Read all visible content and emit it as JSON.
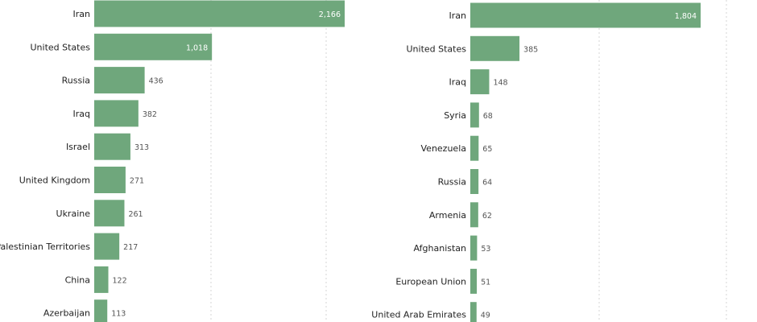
{
  "chart_data": [
    {
      "type": "bar",
      "orientation": "horizontal",
      "title": "",
      "xlabel": "",
      "ylabel": "",
      "xlim": [
        0,
        2200
      ],
      "grid": true,
      "color": "#6fa77c",
      "categories": [
        "Iran",
        "United States",
        "Russia",
        "Iraq",
        "Israel",
        "United Kingdom",
        "Ukraine",
        "Palestinian Territories",
        "China",
        "Azerbaijan"
      ],
      "values": [
        2166,
        1018,
        436,
        382,
        313,
        271,
        261,
        217,
        122,
        113
      ],
      "labels": [
        "2,166",
        "1,018",
        "436",
        "382",
        "313",
        "271",
        "261",
        "217",
        "122",
        "113"
      ]
    },
    {
      "type": "bar",
      "orientation": "horizontal",
      "title": "",
      "xlabel": "",
      "ylabel": "",
      "xlim": [
        0,
        2200
      ],
      "grid": true,
      "color": "#6fa77c",
      "categories": [
        "Iran",
        "United States",
        "Iraq",
        "Syria",
        "Venezuela",
        "Russia",
        "Armenia",
        "Afghanistan",
        "European Union",
        "United Arab Emirates"
      ],
      "values": [
        1804,
        385,
        148,
        68,
        65,
        64,
        62,
        53,
        51,
        49
      ],
      "labels": [
        "1,804",
        "385",
        "148",
        "68",
        "65",
        "64",
        "62",
        "53",
        "51",
        "49"
      ]
    }
  ]
}
